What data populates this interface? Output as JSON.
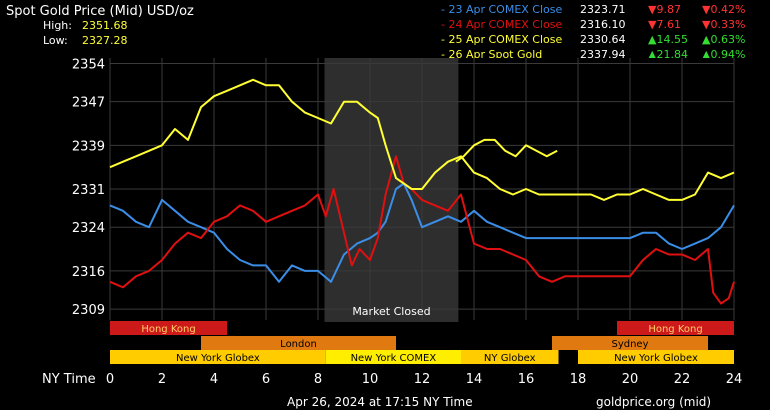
{
  "header": {
    "title": "Spot Gold Price (Mid) USD/oz",
    "high_label": "High:",
    "high_value": "2351.68",
    "low_label": "Low:",
    "low_value": "2327.28"
  },
  "legend": [
    {
      "label": "- 23 Apr COMEX Close",
      "price": "2323.71",
      "change": "9.87",
      "pct": "0.42%",
      "dir": "down",
      "color": "#3b8ee8"
    },
    {
      "label": "- 24 Apr COMEX Close",
      "price": "2316.10",
      "change": "7.61",
      "pct": "0.33%",
      "dir": "down",
      "color": "#e01010"
    },
    {
      "label": "- 25 Apr COMEX Close",
      "price": "2330.64",
      "change": "14.55",
      "pct": "0.63%",
      "dir": "up",
      "color": "#ffff33"
    },
    {
      "label": "- 26 Apr Spot Gold",
      "price": "2337.94",
      "change": "21.84",
      "pct": "0.94%",
      "dir": "up",
      "color": "#ffff33"
    }
  ],
  "sessions": [
    {
      "label": "Hong Kong",
      "row": 0,
      "start": 0,
      "end": 4.5,
      "color": "#cc1a1a"
    },
    {
      "label": "Hong Kong",
      "row": 0,
      "start": 19.5,
      "end": 24,
      "color": "#cc1a1a"
    },
    {
      "label": "London",
      "row": 1,
      "start": 3.5,
      "end": 11,
      "color": "#e07a10"
    },
    {
      "label": "Sydney",
      "row": 1,
      "start": 17,
      "end": 23,
      "color": "#e07a10"
    },
    {
      "label": "New York Globex",
      "row": 2,
      "start": 0,
      "end": 8.3,
      "color": "#ffcc00"
    },
    {
      "label": "New York COMEX",
      "row": 2,
      "start": 8.3,
      "end": 13.5,
      "color": "#ffee00"
    },
    {
      "label": "NY Globex",
      "row": 2,
      "start": 13.5,
      "end": 17.25,
      "color": "#ffcc00"
    },
    {
      "label": "New York Globex",
      "row": 2,
      "start": 18,
      "end": 24,
      "color": "#ffcc00"
    }
  ],
  "market_closed": {
    "label": "Market Closed",
    "start": 8.25,
    "end": 13.4
  },
  "footer": {
    "timestamp": "Apr 26, 2024 at 17:15 NY Time",
    "source": "goldprice.org (mid)"
  },
  "chart_data": {
    "type": "line",
    "xlabel": "NY Time",
    "xlim": [
      0,
      24
    ],
    "ylim": [
      2307,
      2355
    ],
    "x_ticks": [
      "0",
      "2",
      "4",
      "6",
      "8",
      "10",
      "12",
      "14",
      "16",
      "18",
      "20",
      "22",
      "24"
    ],
    "y_ticks": [
      "2354",
      "2347",
      "2339",
      "2331",
      "2324",
      "2316",
      "2309"
    ],
    "grid": true,
    "series": [
      {
        "name": "23 Apr COMEX Close",
        "color": "#3b8ee8",
        "x": [
          0,
          0.5,
          1,
          1.5,
          2,
          2.5,
          3,
          3.5,
          4,
          4.5,
          5,
          5.5,
          6,
          6.5,
          7,
          7.5,
          8,
          8.5,
          9,
          9.5,
          10,
          10.3,
          10.6,
          11,
          11.3,
          11.6,
          12,
          12.5,
          13,
          13.5,
          14,
          14.5,
          15,
          15.5,
          16,
          16.5,
          17,
          17.5,
          18,
          18.5,
          19,
          19.5,
          20,
          20.5,
          21,
          21.5,
          22,
          22.5,
          23,
          23.5,
          24
        ],
        "y": [
          2328,
          2327,
          2325,
          2324,
          2329,
          2327,
          2325,
          2324,
          2323,
          2320,
          2318,
          2317,
          2317,
          2314,
          2317,
          2316,
          2316,
          2314,
          2319,
          2321,
          2322,
          2323,
          2325,
          2331,
          2332,
          2329,
          2324,
          2325,
          2326,
          2325,
          2327,
          2325,
          2324,
          2323,
          2322,
          2322,
          2322,
          2322,
          2322,
          2322,
          2322,
          2322,
          2322,
          2323,
          2323,
          2321,
          2320,
          2321,
          2322,
          2324,
          2328
        ]
      },
      {
        "name": "24 Apr COMEX Close",
        "color": "#e01010",
        "x": [
          0,
          0.5,
          1,
          1.5,
          2,
          2.5,
          3,
          3.5,
          4,
          4.5,
          5,
          5.5,
          6,
          6.5,
          7,
          7.5,
          8,
          8.3,
          8.6,
          9,
          9.3,
          9.6,
          10,
          10.3,
          10.6,
          11,
          11.3,
          11.6,
          12,
          12.5,
          13,
          13.5,
          14,
          14.5,
          15,
          15.5,
          16,
          16.5,
          17,
          17.5,
          18,
          18.5,
          19,
          19.5,
          20,
          20.5,
          21,
          21.5,
          22,
          22.5,
          23,
          23.2,
          23.5,
          23.8,
          24
        ],
        "y": [
          2314,
          2313,
          2315,
          2316,
          2318,
          2321,
          2323,
          2322,
          2325,
          2326,
          2328,
          2327,
          2325,
          2326,
          2327,
          2328,
          2330,
          2326,
          2331,
          2323,
          2317,
          2320,
          2318,
          2322,
          2330,
          2337,
          2332,
          2331,
          2329,
          2328,
          2327,
          2330,
          2321,
          2320,
          2320,
          2319,
          2318,
          2315,
          2314,
          2315,
          2315,
          2315,
          2315,
          2315,
          2315,
          2318,
          2320,
          2319,
          2319,
          2318,
          2320,
          2312,
          2310,
          2311,
          2314
        ]
      },
      {
        "name": "25 Apr COMEX Close",
        "color": "#ffff33",
        "x": [
          0,
          0.5,
          1,
          1.5,
          2,
          2.5,
          3,
          3.5,
          4,
          4.5,
          5,
          5.5,
          6,
          6.5,
          7,
          7.5,
          8,
          8.5,
          9,
          9.5,
          10,
          10.3,
          10.6,
          11,
          11.3,
          11.6,
          12,
          12.5,
          13,
          13.5,
          14,
          14.5,
          15,
          15.5,
          16,
          16.5,
          17,
          17.5,
          18,
          18.5,
          19,
          19.5,
          20,
          20.5,
          21,
          21.5,
          22,
          22.5,
          23,
          23.5,
          24
        ],
        "y": [
          2335,
          2336,
          2337,
          2338,
          2339,
          2342,
          2340,
          2346,
          2348,
          2349,
          2350,
          2351,
          2350,
          2350,
          2347,
          2345,
          2344,
          2343,
          2347,
          2347,
          2345,
          2344,
          2339,
          2333,
          2332,
          2331,
          2331,
          2334,
          2336,
          2337,
          2334,
          2333,
          2331,
          2330,
          2331,
          2330,
          2330,
          2330,
          2330,
          2330,
          2329,
          2330,
          2330,
          2331,
          2330,
          2329,
          2329,
          2330,
          2334,
          2333,
          2334
        ]
      },
      {
        "name": "26 Apr Spot Gold",
        "color": "#ffff33",
        "x": [
          13.3,
          13.6,
          14,
          14.4,
          14.8,
          15.2,
          15.6,
          16,
          16.4,
          16.8,
          17.2
        ],
        "y": [
          2336,
          2337,
          2339,
          2340,
          2340,
          2338,
          2337,
          2339,
          2338,
          2337,
          2338
        ]
      }
    ]
  }
}
